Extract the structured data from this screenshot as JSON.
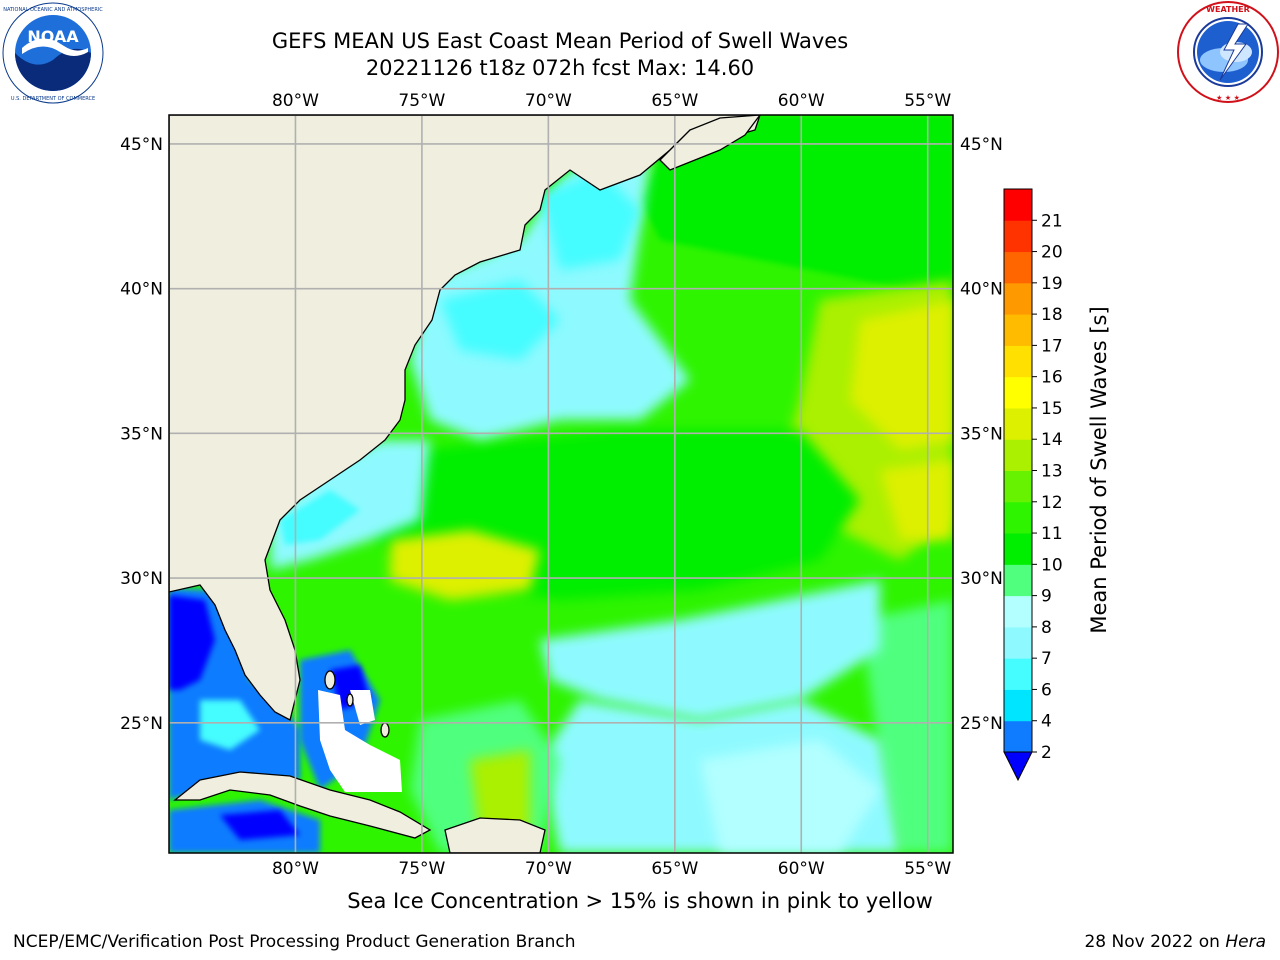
{
  "header": {
    "title_line1": "GEFS MEAN US East Coast Mean Period of Swell Waves",
    "title_line2": "20221126 t18z 072h fcst   Max: 14.60"
  },
  "logos": {
    "left": {
      "name": "noaa-logo",
      "text": "NOAA",
      "ring_text": "NATIONAL OCEANIC AND ATMOSPHERIC ADMINISTRATION · U.S. DEPARTMENT OF COMMERCE"
    },
    "right": {
      "name": "national-weather-service-logo",
      "ring_text": "NATIONAL WEATHER SERVICE"
    }
  },
  "map": {
    "projection": "PlateCarree",
    "lon_range": [
      -85,
      -54
    ],
    "lat_range": [
      20.5,
      46
    ],
    "lon_ticks": [
      -80,
      -75,
      -70,
      -65,
      -60,
      -55
    ],
    "lon_labels": [
      "80°W",
      "75°W",
      "70°W",
      "65°W",
      "60°W",
      "55°W"
    ],
    "lat_ticks": [
      45,
      40,
      35,
      30,
      25
    ],
    "lat_labels": [
      "45°N",
      "40°N",
      "35°N",
      "30°N",
      "25°N"
    ],
    "land_color": "#efeedf",
    "grid_color": "#b0b0b0"
  },
  "colorbar": {
    "label": "Mean Period of Swell Waves [s]",
    "tick_labels": [
      "2",
      "4",
      "6",
      "7",
      "8",
      "9",
      "10",
      "11",
      "12",
      "13",
      "14",
      "15",
      "16",
      "17",
      "18",
      "19",
      "20",
      "21"
    ],
    "colors": [
      "#0f7cff",
      "#00e5ff",
      "#45fcff",
      "#8efaff",
      "#b3ffff",
      "#50ff7e",
      "#00ee00",
      "#2ef400",
      "#66f200",
      "#aaf000",
      "#ddf000",
      "#ffff00",
      "#ffe000",
      "#ffbb00",
      "#ff9900",
      "#ff6600",
      "#ff3300",
      "#ff0000"
    ],
    "under_color": "#0000ff"
  },
  "footer": {
    "note": "Sea Ice Concentration > 15% is shown in pink to yellow",
    "branch": "NCEP/EMC/Verification Post Processing Product Generation Branch",
    "date": "28 Nov 2022 on",
    "machine": "Hera"
  }
}
